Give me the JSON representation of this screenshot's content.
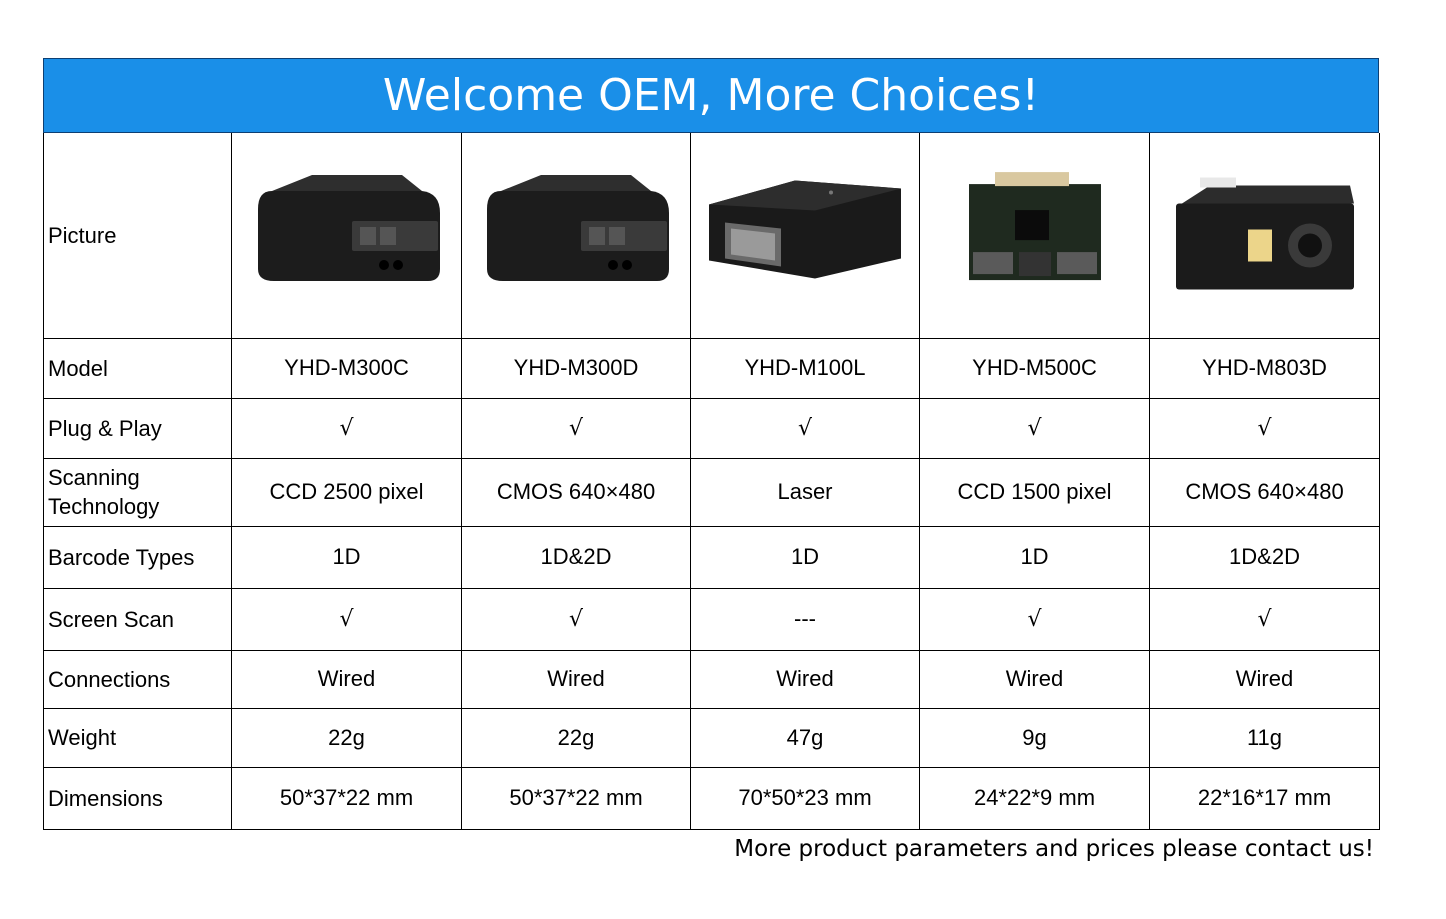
{
  "banner": {
    "title": "Welcome OEM, More Choices!"
  },
  "footer": {
    "note": "More product parameters and prices please contact us!"
  },
  "table": {
    "rows": [
      {
        "label": "Picture"
      },
      {
        "label": "Model",
        "values": [
          "YHD-M300C",
          "YHD-M300D",
          "YHD-M100L",
          "YHD-M500C",
          "YHD-M803D"
        ]
      },
      {
        "label": "Plug & Play",
        "values": [
          "√",
          "√",
          "√",
          "√",
          "√"
        ]
      },
      {
        "label_line1": "Scanning",
        "label_line2": "Technology",
        "values": [
          "CCD 2500 pixel",
          "CMOS 640×480",
          "Laser",
          "CCD 1500 pixel",
          "CMOS 640×480"
        ]
      },
      {
        "label": "Barcode Types",
        "values": [
          "1D",
          "1D&2D",
          "1D",
          "1D",
          "1D&2D"
        ]
      },
      {
        "label": "Screen Scan",
        "values": [
          "√",
          "√",
          "---",
          "√",
          "√"
        ]
      },
      {
        "label": "Connections",
        "values": [
          "Wired",
          "Wired",
          "Wired",
          "Wired",
          "Wired"
        ]
      },
      {
        "label": "Weight",
        "values": [
          "22g",
          "22g",
          "47g",
          "9g",
          "11g"
        ]
      },
      {
        "label": "Dimensions",
        "values": [
          "50*37*22 mm",
          "50*37*22 mm",
          "70*50*23 mm",
          "24*22*9 mm",
          "22*16*17 mm"
        ]
      }
    ]
  },
  "colors": {
    "banner": "#1a8fe8",
    "border": "#000000"
  }
}
